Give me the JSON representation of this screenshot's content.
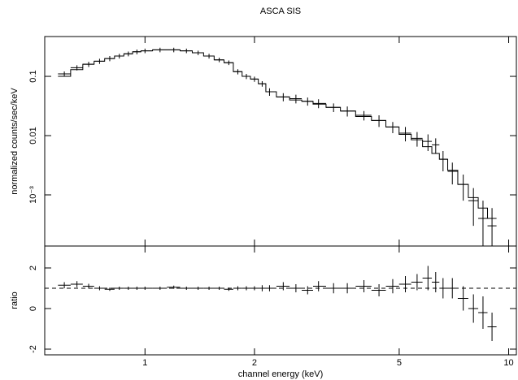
{
  "chart_data": [
    {
      "type": "errorbar",
      "title": "ASCA SIS",
      "ylabel": "normalized counts/sec/keV",
      "log_x": true,
      "log_y": true,
      "xlim": [
        0.53,
        10.5
      ],
      "ylim": [
        0.000137,
        0.47
      ],
      "yticks": [
        0.1,
        0.01,
        {
          "value": 0.001,
          "label": "10⁻³"
        }
      ],
      "x": [
        0.6,
        0.65,
        0.7,
        0.75,
        0.8,
        0.85,
        0.9,
        0.95,
        1.0,
        1.1,
        1.2,
        1.3,
        1.4,
        1.5,
        1.6,
        1.7,
        1.8,
        1.9,
        2.0,
        2.1,
        2.2,
        2.4,
        2.6,
        2.8,
        3.0,
        3.3,
        3.6,
        4.0,
        4.4,
        4.8,
        5.2,
        5.6,
        6.0,
        6.3,
        6.6,
        7.0,
        7.5,
        8.0,
        8.5,
        9.0
      ],
      "values": [
        0.11,
        0.14,
        0.16,
        0.18,
        0.2,
        0.22,
        0.24,
        0.26,
        0.27,
        0.28,
        0.28,
        0.27,
        0.25,
        0.22,
        0.19,
        0.17,
        0.12,
        0.1,
        0.09,
        0.075,
        0.055,
        0.045,
        0.042,
        0.038,
        0.035,
        0.03,
        0.026,
        0.022,
        0.018,
        0.014,
        0.011,
        0.009,
        0.008,
        0.007,
        0.004,
        0.0025,
        0.0015,
        0.0008,
        0.0004,
        0.0003
      ],
      "errors": [
        0.011,
        0.014,
        0.016,
        0.018,
        0.02,
        0.02,
        0.022,
        0.024,
        0.024,
        0.025,
        0.025,
        0.024,
        0.022,
        0.02,
        0.017,
        0.015,
        0.012,
        0.01,
        0.009,
        0.008,
        0.008,
        0.007,
        0.007,
        0.006,
        0.006,
        0.005,
        0.005,
        0.004,
        0.004,
        0.003,
        0.003,
        0.0025,
        0.0025,
        0.002,
        0.0015,
        0.001,
        0.0007,
        0.0005,
        0.0004,
        0.0003
      ],
      "model": [
        0.1,
        0.13,
        0.16,
        0.18,
        0.2,
        0.22,
        0.24,
        0.26,
        0.27,
        0.28,
        0.28,
        0.27,
        0.25,
        0.22,
        0.19,
        0.17,
        0.12,
        0.1,
        0.09,
        0.075,
        0.055,
        0.045,
        0.04,
        0.038,
        0.034,
        0.03,
        0.026,
        0.021,
        0.018,
        0.014,
        0.0105,
        0.0085,
        0.0065,
        0.005,
        0.004,
        0.0026,
        0.0015,
        0.0009,
        0.0006,
        0.0004
      ]
    },
    {
      "type": "errorbar",
      "xlabel": "channel energy (keV)",
      "ylabel": "ratio",
      "log_x": true,
      "log_y": false,
      "xlim": [
        0.53,
        10.5
      ],
      "ylim": [
        -2.28,
        3.08
      ],
      "xticks": [
        1,
        2,
        5,
        10
      ],
      "yticks": [
        -2,
        0,
        2
      ],
      "ref_line": 1,
      "x": [
        0.6,
        0.65,
        0.7,
        0.75,
        0.8,
        0.85,
        0.9,
        0.95,
        1.0,
        1.1,
        1.2,
        1.3,
        1.4,
        1.5,
        1.6,
        1.7,
        1.8,
        1.9,
        2.0,
        2.1,
        2.2,
        2.4,
        2.6,
        2.8,
        3.0,
        3.3,
        3.6,
        4.0,
        4.4,
        4.8,
        5.2,
        5.6,
        6.0,
        6.3,
        6.6,
        7.0,
        7.5,
        8.0,
        8.5,
        9.0
      ],
      "values": [
        1.15,
        1.2,
        1.1,
        1.0,
        0.95,
        1.0,
        1.0,
        1.0,
        1.0,
        1.0,
        1.05,
        1.0,
        1.0,
        1.0,
        1.0,
        0.95,
        1.0,
        1.0,
        1.0,
        1.0,
        1.0,
        1.1,
        1.0,
        0.9,
        1.1,
        1.0,
        1.0,
        1.1,
        0.9,
        1.1,
        1.2,
        1.3,
        1.5,
        1.3,
        1.0,
        1.0,
        0.5,
        0.0,
        -0.2,
        -0.9
      ],
      "errors": [
        0.15,
        0.15,
        0.12,
        0.1,
        0.08,
        0.08,
        0.08,
        0.08,
        0.08,
        0.08,
        0.08,
        0.08,
        0.08,
        0.08,
        0.08,
        0.08,
        0.1,
        0.1,
        0.1,
        0.15,
        0.15,
        0.2,
        0.2,
        0.2,
        0.25,
        0.25,
        0.25,
        0.3,
        0.3,
        0.35,
        0.4,
        0.4,
        0.6,
        0.5,
        0.5,
        0.5,
        0.6,
        0.7,
        0.8,
        0.7
      ]
    }
  ]
}
